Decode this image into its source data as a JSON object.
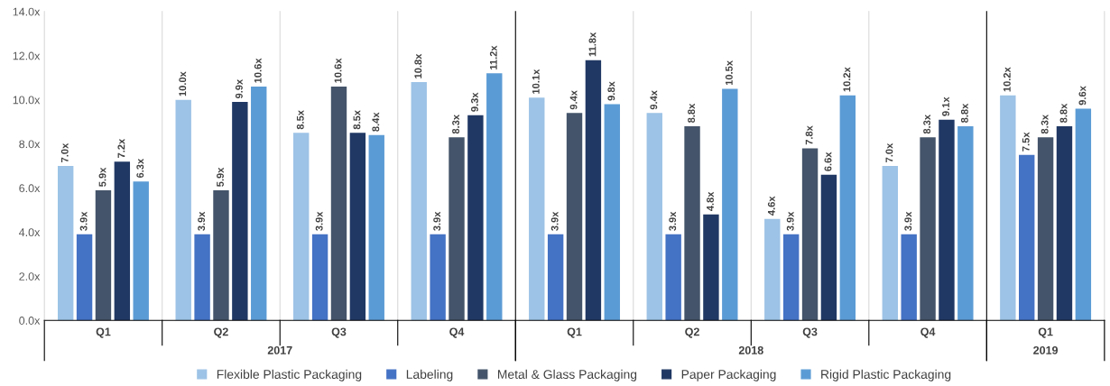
{
  "chart_data": {
    "type": "bar",
    "categories": [
      "Q1",
      "Q2",
      "Q3",
      "Q4",
      "Q1",
      "Q2",
      "Q3",
      "Q4",
      "Q1"
    ],
    "annotations": [
      "2017",
      "2018",
      "2019"
    ],
    "series": [
      {
        "name": "Flexible Plastic Packaging",
        "color": "#9dc3e6",
        "values": [
          7.0,
          10.0,
          8.5,
          10.8,
          10.1,
          9.4,
          4.6,
          7.0,
          10.2
        ],
        "value_labels": [
          "7.0x",
          "10.0x",
          "8.5x",
          "10.8x",
          "10.1x",
          "9.4x",
          "4.6x",
          "7.0x",
          "10.2x"
        ]
      },
      {
        "name": "Labeling",
        "color": "#4472c4",
        "values": [
          3.9,
          3.9,
          3.9,
          3.9,
          3.9,
          3.9,
          3.9,
          3.9,
          7.5
        ],
        "value_labels": [
          "3.9x",
          "3.9x",
          "3.9x",
          "3.9x",
          "3.9x",
          "3.9x",
          "3.9x",
          "3.9x",
          "7.5x"
        ]
      },
      {
        "name": "Metal & Glass Packaging",
        "color": "#44546a",
        "values": [
          5.9,
          5.9,
          10.6,
          8.3,
          9.4,
          8.8,
          7.8,
          8.3,
          8.3
        ],
        "value_labels": [
          "5.9x",
          "5.9x",
          "10.6x",
          "8.3x",
          "9.4x",
          "8.8x",
          "7.8x",
          "8.3x",
          "8.3x"
        ]
      },
      {
        "name": "Paper Packaging",
        "color": "#203864",
        "values": [
          7.2,
          9.9,
          8.5,
          9.3,
          11.8,
          4.8,
          6.6,
          9.1,
          8.8
        ],
        "value_labels": [
          "7.2x",
          "9.9x",
          "8.5x",
          "9.3x",
          "11.8x",
          "4.8x",
          "6.6x",
          "9.1x",
          "8.8x"
        ]
      },
      {
        "name": "Rigid Plastic Packaging",
        "color": "#5b9bd5",
        "values": [
          6.3,
          10.6,
          8.4,
          11.2,
          9.8,
          10.5,
          10.2,
          8.8,
          9.6
        ],
        "value_labels": [
          "6.3x",
          "10.6x",
          "8.4x",
          "11.2x",
          "9.8x",
          "10.5x",
          "10.2x",
          "8.8x",
          "9.6x"
        ]
      }
    ],
    "ylim": [
      0,
      14
    ],
    "yticks": [
      {
        "value": 0,
        "label": "0.0x"
      },
      {
        "value": 2,
        "label": "2.0x"
      },
      {
        "value": 4,
        "label": "4.0x"
      },
      {
        "value": 6,
        "label": "6.0x"
      },
      {
        "value": 8,
        "label": "8.0x"
      },
      {
        "value": 10,
        "label": "10.0x"
      },
      {
        "value": 12,
        "label": "12.0x"
      },
      {
        "value": 14,
        "label": "14.0x"
      }
    ],
    "legend": "bottom",
    "grid": false
  }
}
